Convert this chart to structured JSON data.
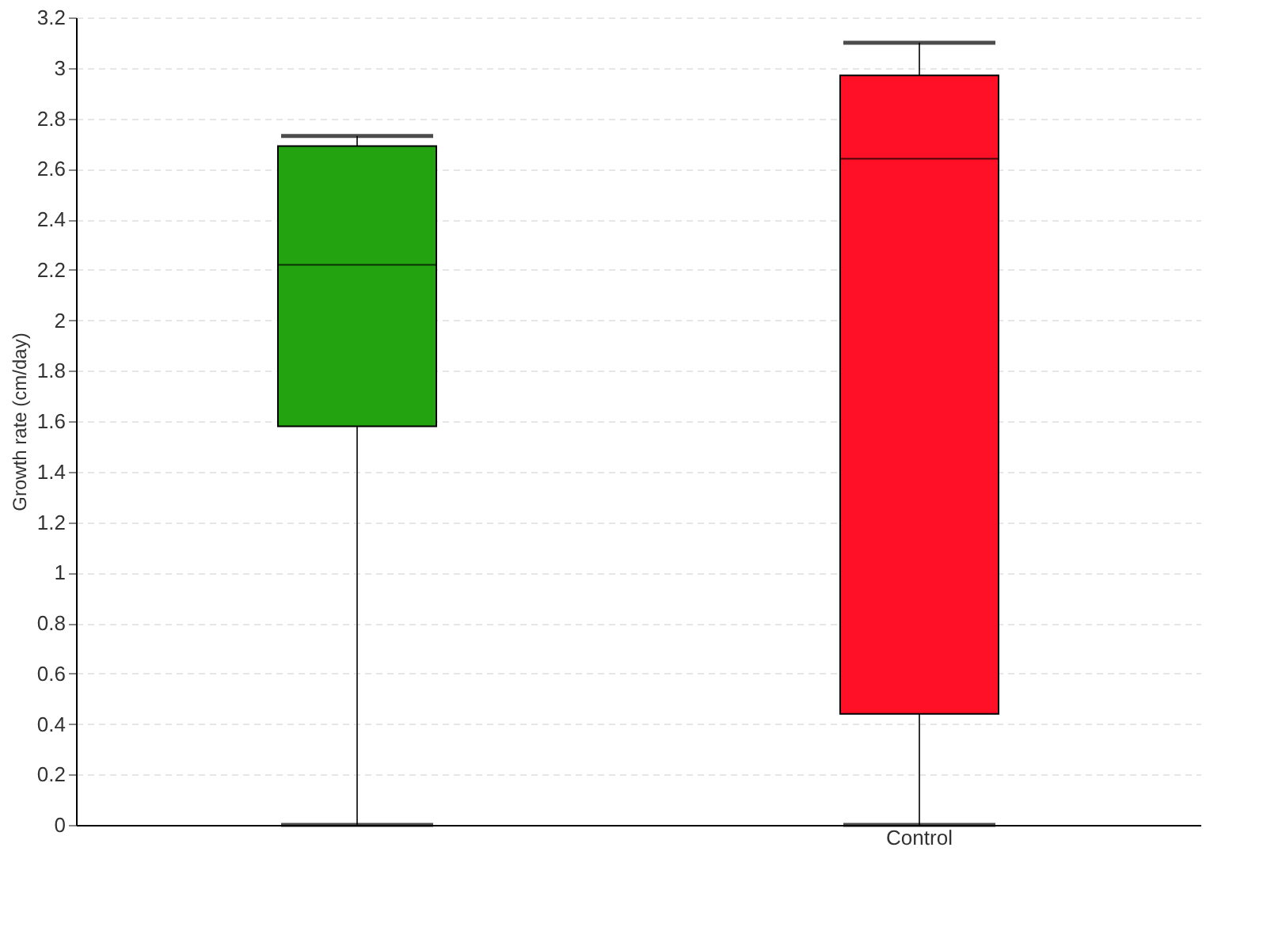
{
  "chart_data": {
    "type": "box",
    "ylabel": "Growth rate (cm/day)",
    "categories": [
      null,
      "Control"
    ],
    "colors": [
      "#22a30f",
      "#ff1027"
    ],
    "boxes": [
      {
        "low": 0,
        "q1": 1.58,
        "median": 2.22,
        "q3": 2.69,
        "high": 2.73
      },
      {
        "low": 0,
        "q1": 0.44,
        "median": 2.64,
        "q3": 2.97,
        "high": 3.1
      }
    ],
    "ylim": [
      0,
      3.2
    ],
    "yticks": [
      0,
      0.2,
      0.4,
      0.6,
      0.8,
      1,
      1.2,
      1.4,
      1.6,
      1.8,
      2,
      2.2,
      2.4,
      2.6,
      2.8,
      3,
      3.2
    ],
    "grid": "y"
  }
}
